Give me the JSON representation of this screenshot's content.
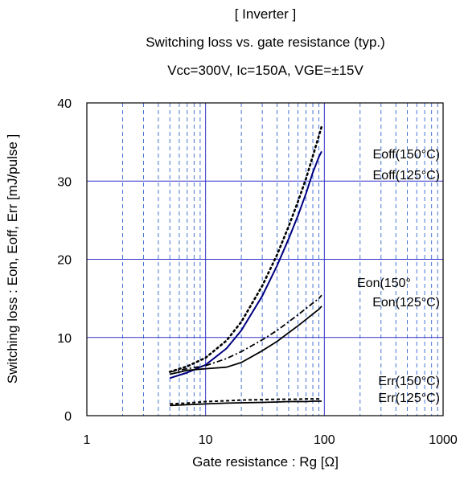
{
  "chart_data": {
    "type": "line",
    "title": "[ Inverter ]",
    "subtitle": "Switching loss  vs.  gate resistance  (typ.)",
    "conditions": "Vcc=300V,   Ic=150A,   VGE=±15V",
    "xlabel": "Gate resistance : Rg [Ω]",
    "ylabel": "Switching loss  : Eon, Eoff, Err  [mJ/pulse ]",
    "xscale": "log",
    "xlim": [
      1,
      1000
    ],
    "ylim": [
      0,
      40
    ],
    "xticks": [
      1,
      10,
      100,
      1000
    ],
    "xtick_labels": [
      "1",
      "10",
      "100",
      "1000"
    ],
    "yticks": [
      0,
      10,
      20,
      30,
      40
    ],
    "ytick_labels": [
      "0",
      "10",
      "20",
      "30",
      "40"
    ],
    "grid": true,
    "colors": {
      "major_grid": "#3333cc",
      "minor_grid": "#3366cc",
      "eoff_125": "#000080",
      "black_series": "#000000"
    },
    "series": [
      {
        "name": "Eoff(150°C)",
        "style": "dotted",
        "x": [
          5,
          7,
          10,
          15,
          20,
          30,
          40,
          50,
          60,
          70,
          80,
          90,
          95
        ],
        "y": [
          5.6,
          6.3,
          7.4,
          9.6,
          12.0,
          16.6,
          20.6,
          24.2,
          27.4,
          30.3,
          33.2,
          35.8,
          37.0
        ]
      },
      {
        "name": "Eoff(125°C)",
        "style": "solid",
        "x": [
          5,
          7,
          10,
          15,
          20,
          30,
          40,
          50,
          60,
          70,
          80,
          90,
          95
        ],
        "y": [
          4.8,
          5.5,
          6.5,
          8.6,
          10.9,
          15.3,
          19.2,
          22.6,
          25.6,
          28.4,
          31.1,
          33.1,
          33.8
        ]
      },
      {
        "name": "Eon(150°",
        "style": "dash-dot",
        "x": [
          5,
          7,
          10,
          15,
          20,
          30,
          40,
          50,
          60,
          70,
          80,
          90,
          95
        ],
        "y": [
          5.6,
          6.0,
          6.4,
          7.3,
          8.2,
          9.7,
          10.9,
          12.0,
          12.9,
          13.7,
          14.4,
          15.0,
          15.4
        ]
      },
      {
        "name": "Eon(125°C)",
        "style": "solid",
        "x": [
          5,
          7,
          10,
          15,
          20,
          30,
          40,
          50,
          60,
          70,
          80,
          90,
          95
        ],
        "y": [
          5.3,
          5.8,
          6.0,
          6.2,
          6.8,
          8.3,
          9.5,
          10.6,
          11.5,
          12.3,
          13.0,
          13.6,
          14.0
        ]
      },
      {
        "name": "Err(150°C)",
        "style": "dotted",
        "x": [
          5,
          7,
          10,
          15,
          20,
          30,
          40,
          50,
          60,
          70,
          80,
          90,
          95
        ],
        "y": [
          1.5,
          1.6,
          1.8,
          1.9,
          2.0,
          2.05,
          2.1,
          2.1,
          2.1,
          2.15,
          2.15,
          2.15,
          2.15
        ]
      },
      {
        "name": "Err(125°C)",
        "style": "solid",
        "x": [
          5,
          7,
          10,
          15,
          20,
          30,
          40,
          50,
          60,
          70,
          80,
          90,
          95
        ],
        "y": [
          1.3,
          1.4,
          1.5,
          1.6,
          1.65,
          1.7,
          1.75,
          1.8,
          1.8,
          1.8,
          1.85,
          1.85,
          1.85
        ]
      }
    ],
    "annotations": [
      "Eoff(150°C)",
      "Eoff(125°C)",
      "Eon(150°",
      "Eon(125°C)",
      "Err(150°C)",
      "Err(125°C)"
    ]
  }
}
